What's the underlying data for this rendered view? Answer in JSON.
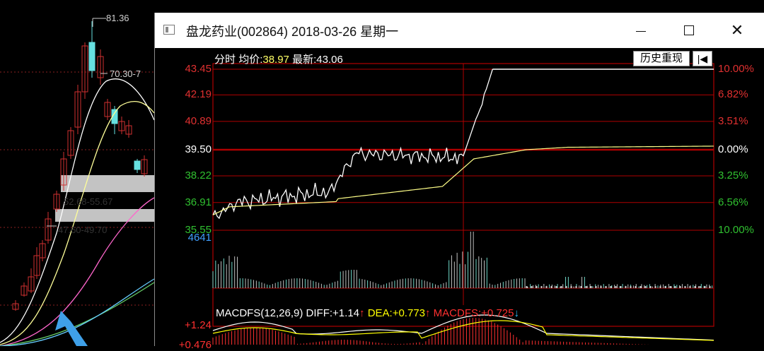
{
  "background_kline": {
    "labels": [
      "81.36",
      "70.30-7",
      "52.68-55.67",
      "47.60-49.70"
    ]
  },
  "window": {
    "title": "盘龙药业(002864) 2018-03-26 星期一",
    "controls": [
      "minimize",
      "maximize",
      "close"
    ]
  },
  "intraday": {
    "header": {
      "prefix": "分时",
      "avg_label": "均价:",
      "avg_value": "38.97",
      "latest_label": "最新:",
      "latest_value": "43.06"
    },
    "history_button": "历史重现",
    "back_icon": "arrow-left-bar-icon",
    "price_axis": [
      "43.45",
      "42.19",
      "40.89",
      "39.50",
      "38.22",
      "36.91",
      "35.55"
    ],
    "pct_axis": [
      "10.00%",
      "6.82%",
      "3.51%",
      "0.00%",
      "3.25%",
      "6.56%",
      "10.00%"
    ],
    "prev_close": 39.5,
    "limit_up": 43.45,
    "limit_down": 35.55,
    "volume_axis_label": "4641",
    "macd": {
      "label": "MACDFS(12,26,9)",
      "diff_label": "DIFF:",
      "diff_value": "+1.14",
      "dea_label": "DEA:",
      "dea_value": "+0.773",
      "macdfs_label": "MACDFS:",
      "macdfs_value": "+0.725",
      "axis": [
        "+1.24",
        "+0.476"
      ]
    },
    "colors": {
      "price_line": "#ffffff",
      "avg_line": "#ffff88",
      "grid": "#b00000",
      "axis_up": "#e03030",
      "axis_down": "#30c030",
      "axis_neutral": "#ffffff",
      "volume": "#c0c0c0",
      "volume_label": "#40a0ff",
      "diff": "#ffffff",
      "dea": "#ffff00",
      "macdfs": "#ff3030",
      "up_arrow": "#ff3030",
      "down_arrow": "#30c0ff"
    }
  }
}
